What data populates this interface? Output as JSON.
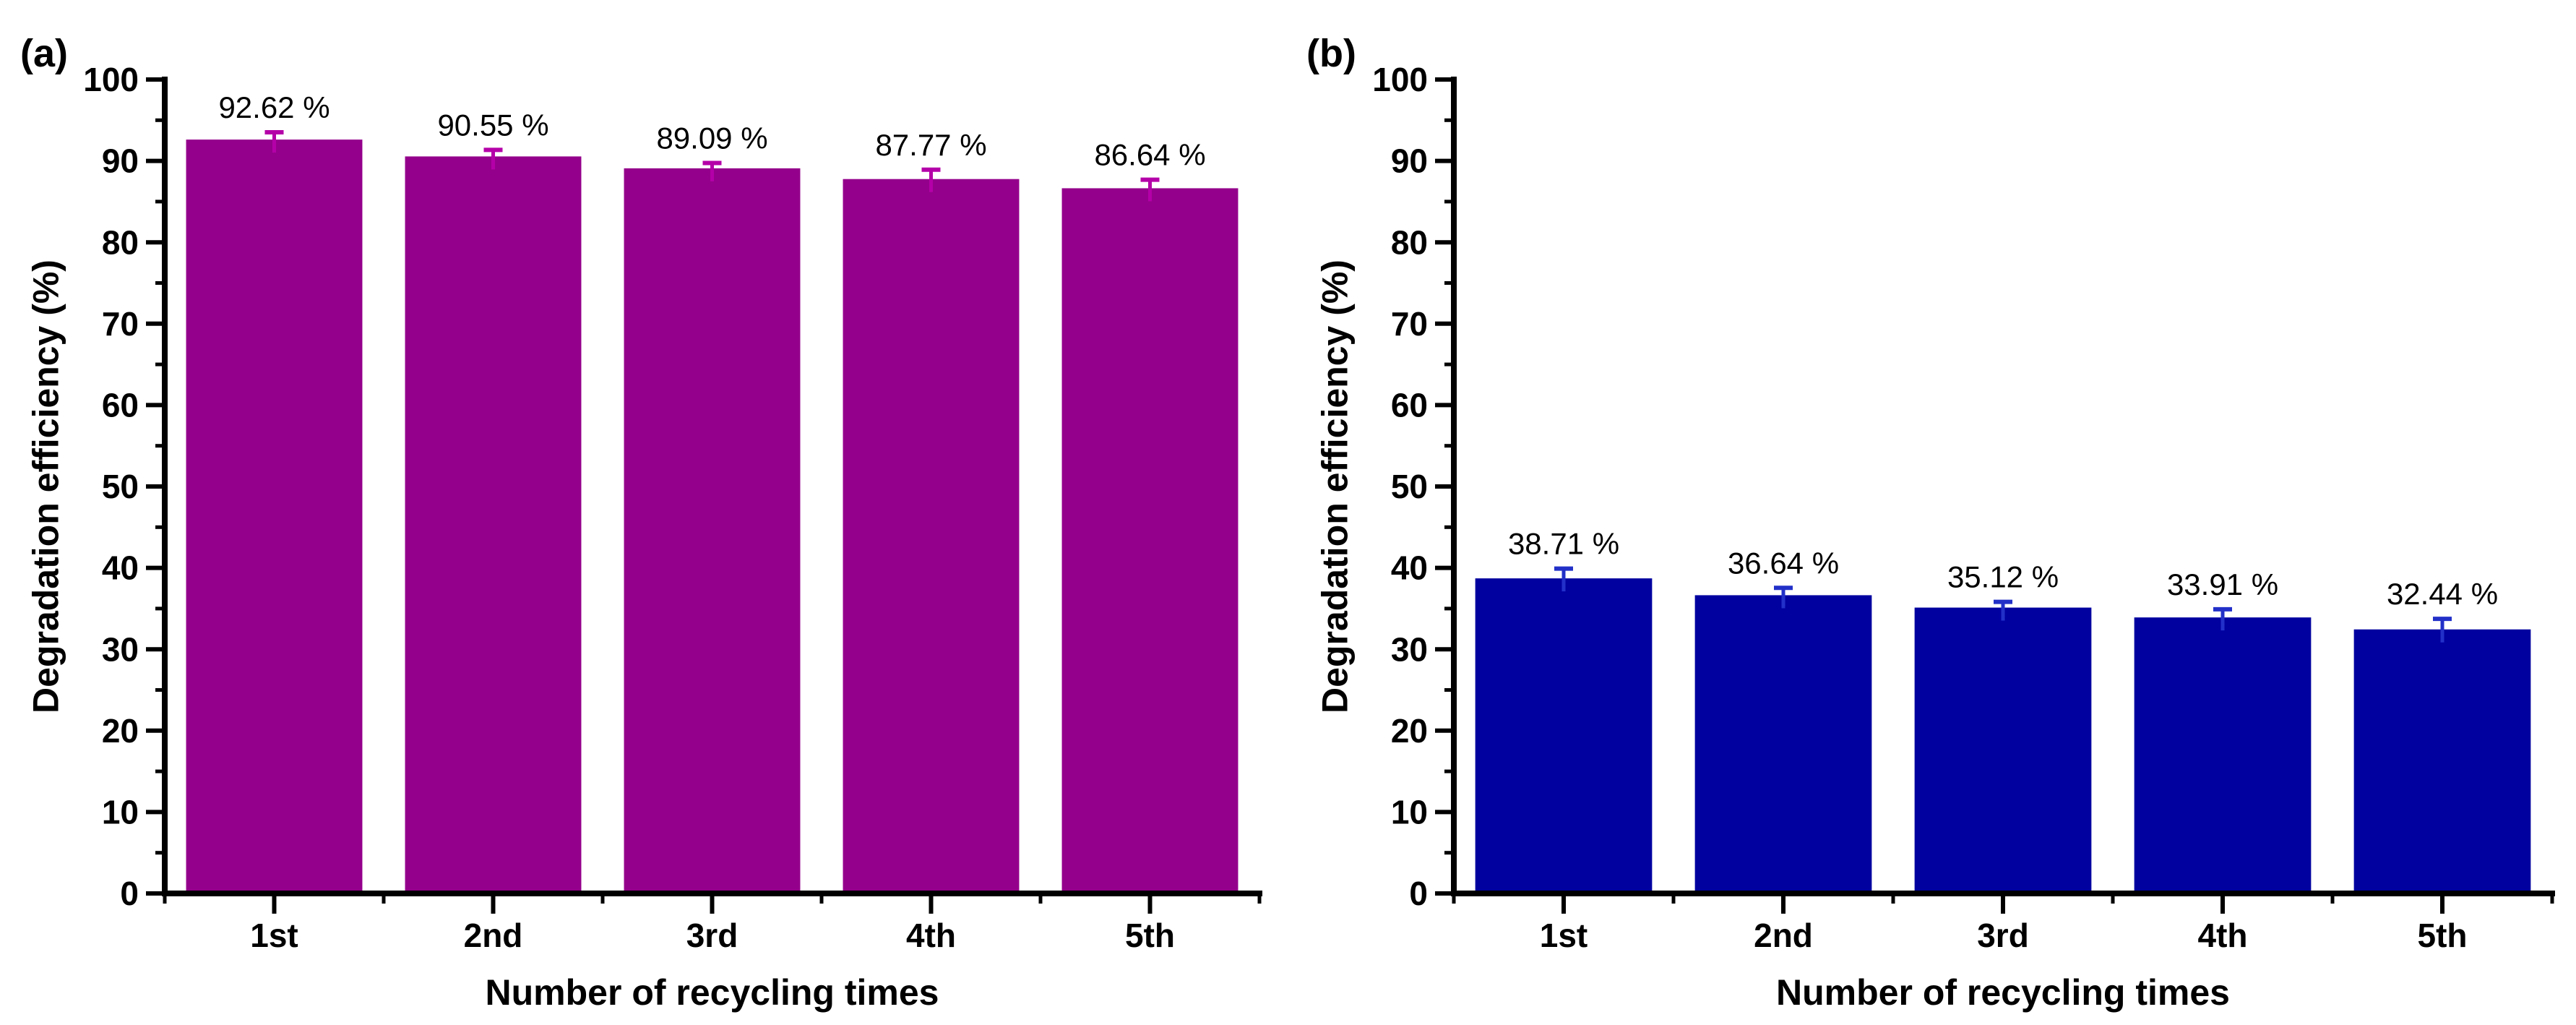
{
  "figure": {
    "background": "#ffffff",
    "axis_color": "#000000",
    "text_color": "#000000"
  },
  "chart_data": [
    {
      "panel": "(a)",
      "type": "bar",
      "title": "",
      "categories": [
        "1st",
        "2nd",
        "3rd",
        "4th",
        "5th"
      ],
      "values": [
        92.62,
        90.55,
        89.09,
        87.77,
        86.64
      ],
      "value_labels": [
        "92.62 %",
        "90.55 %",
        "89.09 %",
        "87.77 %",
        "86.64 %"
      ],
      "errors": [
        0.9,
        0.8,
        0.65,
        1.15,
        1.05
      ],
      "bar_color": "#94008B",
      "error_color": "#B400A8",
      "xlabel": "Number of recycling times",
      "ylabel": "Degradation efficiency (%)",
      "ylim": [
        0,
        100
      ],
      "ytick_step": 10,
      "yminor_step": 5,
      "grid": false,
      "legend": "none",
      "bar_width_ratio": 0.805
    },
    {
      "panel": "(b)",
      "type": "bar",
      "title": "",
      "categories": [
        "1st",
        "2nd",
        "3rd",
        "4th",
        "5th"
      ],
      "values": [
        38.71,
        36.64,
        35.12,
        33.91,
        32.44
      ],
      "value_labels": [
        "38.71 %",
        "36.64 %",
        "35.12 %",
        "33.91 %",
        "32.44 %"
      ],
      "errors": [
        1.2,
        0.9,
        0.7,
        1.0,
        1.3
      ],
      "bar_color": "#0101A0",
      "error_color": "#2230C8",
      "xlabel": "Number of recycling times",
      "ylabel": "Degradation efficiency (%)",
      "ylim": [
        0,
        100
      ],
      "ytick_step": 10,
      "yminor_step": 5,
      "grid": false,
      "legend": "none",
      "bar_width_ratio": 0.805
    }
  ]
}
